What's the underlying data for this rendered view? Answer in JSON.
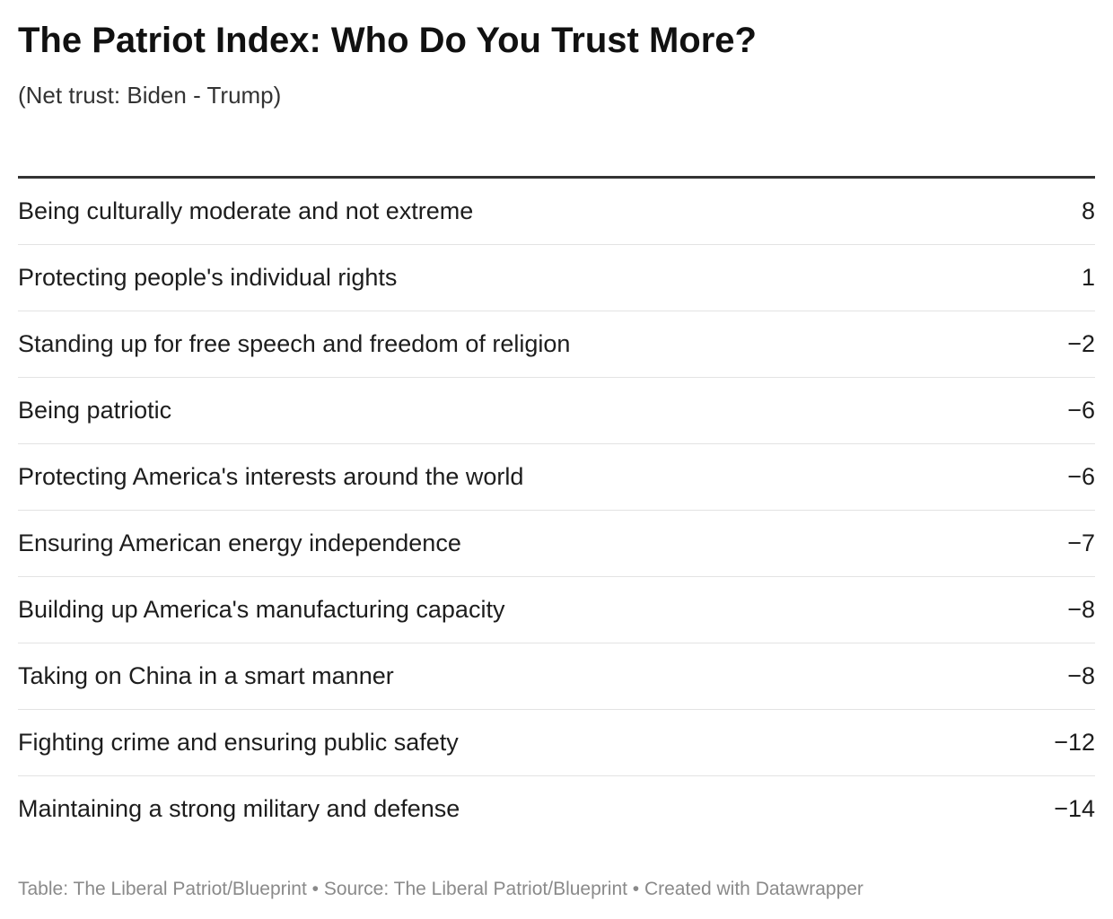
{
  "chart_data": {
    "type": "table",
    "title": "The Patriot Index: Who Do You Trust More?",
    "subtitle": "(Net trust: Biden - Trump)",
    "rows": [
      {
        "label": "Being culturally moderate and not extreme",
        "value": 8,
        "display": "8"
      },
      {
        "label": "Protecting people's individual rights",
        "value": 1,
        "display": "1"
      },
      {
        "label": "Standing up for free speech and freedom of religion",
        "value": -2,
        "display": "−2"
      },
      {
        "label": "Being patriotic",
        "value": -6,
        "display": "−6"
      },
      {
        "label": "Protecting America's interests around the world",
        "value": -6,
        "display": "−6"
      },
      {
        "label": "Ensuring American energy independence",
        "value": -7,
        "display": "−7"
      },
      {
        "label": "Building up America's manufacturing capacity",
        "value": -8,
        "display": "−8"
      },
      {
        "label": "Taking on China in a smart manner",
        "value": -8,
        "display": "−8"
      },
      {
        "label": "Fighting crime and ensuring public safety",
        "value": -12,
        "display": "−12"
      },
      {
        "label": "Maintaining a strong military and defense",
        "value": -14,
        "display": "−14"
      }
    ],
    "footer": "Table: The Liberal Patriot/Blueprint • Source: The Liberal Patriot/Blueprint • Created with Datawrapper"
  }
}
